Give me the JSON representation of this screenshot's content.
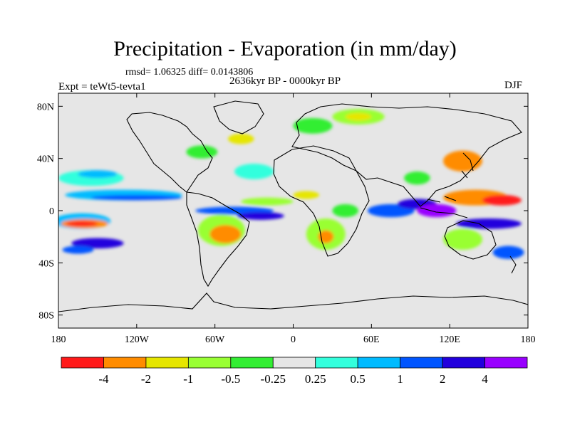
{
  "header": {
    "title": "Precipitation - Evaporation (in mm/day)",
    "stats": "rmsd= 1.06325 diff= 0.0143806",
    "period": "2636kyr BP - 0000kyr BP",
    "experiment": "Expt = teWt5-tevta1",
    "season": "DJF"
  },
  "chart_data": {
    "type": "heatmap",
    "title": "Precipitation - Evaporation (in mm/day)",
    "subtitle": "2636kyr BP - 0000kyr BP",
    "xlim": [
      -180,
      180
    ],
    "ylim": [
      -90,
      90
    ],
    "x_ticks": [
      {
        "value": -180,
        "label": "180"
      },
      {
        "value": -120,
        "label": "120W"
      },
      {
        "value": -60,
        "label": "60W"
      },
      {
        "value": 0,
        "label": "0"
      },
      {
        "value": 60,
        "label": "60E"
      },
      {
        "value": 120,
        "label": "120E"
      },
      {
        "value": 180,
        "label": "180"
      }
    ],
    "y_ticks": [
      {
        "value": 80,
        "label": "80N"
      },
      {
        "value": 40,
        "label": "40N"
      },
      {
        "value": 0,
        "label": "0"
      },
      {
        "value": -40,
        "label": "40S"
      },
      {
        "value": -80,
        "label": "80S"
      }
    ],
    "background_color": "#e6e6e6",
    "colorbar": {
      "labels": [
        "-4",
        "-2",
        "-1",
        "-0.5",
        "-0.25",
        "0.25",
        "0.5",
        "1",
        "2",
        "4"
      ],
      "colors": [
        "#ff1a1a",
        "#ff8c00",
        "#e6e600",
        "#99ff33",
        "#33ee33",
        "#e6e6e6",
        "#33ffdd",
        "#00bbff",
        "#0055ff",
        "#2200dd",
        "#9900ff"
      ]
    },
    "regions": [
      {
        "lon": -162,
        "lat": -8,
        "rx": 22,
        "ry": 6,
        "color": "#00bbff"
      },
      {
        "lon": -160,
        "lat": -10,
        "rx": 18,
        "ry": 3.5,
        "color": "#ff8c00"
      },
      {
        "lon": -162,
        "lat": -10,
        "rx": 12,
        "ry": 2,
        "color": "#ff1a1a"
      },
      {
        "lon": -130,
        "lat": 12,
        "rx": 45,
        "ry": 4,
        "color": "#00bbff"
      },
      {
        "lon": -120,
        "lat": 10,
        "rx": 35,
        "ry": 2,
        "color": "#0055ff"
      },
      {
        "lon": -155,
        "lat": 25,
        "rx": 25,
        "ry": 6,
        "color": "#33ffdd"
      },
      {
        "lon": -150,
        "lat": 28,
        "rx": 15,
        "ry": 3,
        "color": "#00bbff"
      },
      {
        "lon": -150,
        "lat": -25,
        "rx": 20,
        "ry": 4,
        "color": "#2200dd"
      },
      {
        "lon": -165,
        "lat": -30,
        "rx": 12,
        "ry": 3,
        "color": "#0055ff"
      },
      {
        "lon": -55,
        "lat": -15,
        "rx": 18,
        "ry": 12,
        "color": "#99ff33"
      },
      {
        "lon": -52,
        "lat": -18,
        "rx": 12,
        "ry": 7,
        "color": "#ff8c00"
      },
      {
        "lon": -45,
        "lat": 0,
        "rx": 30,
        "ry": 3,
        "color": "#0055ff"
      },
      {
        "lon": -25,
        "lat": -4,
        "rx": 18,
        "ry": 3,
        "color": "#2200dd"
      },
      {
        "lon": -20,
        "lat": 7,
        "rx": 20,
        "ry": 3,
        "color": "#99ff33"
      },
      {
        "lon": -30,
        "lat": 30,
        "rx": 15,
        "ry": 6,
        "color": "#33ffdd"
      },
      {
        "lon": -70,
        "lat": 45,
        "rx": 12,
        "ry": 5,
        "color": "#33ee33"
      },
      {
        "lon": -40,
        "lat": 55,
        "rx": 10,
        "ry": 4,
        "color": "#e6e600"
      },
      {
        "lon": 15,
        "lat": 65,
        "rx": 15,
        "ry": 6,
        "color": "#33ee33"
      },
      {
        "lon": 50,
        "lat": 72,
        "rx": 20,
        "ry": 6,
        "color": "#99ff33"
      },
      {
        "lon": 50,
        "lat": 72,
        "rx": 10,
        "ry": 3,
        "color": "#e6e600"
      },
      {
        "lon": 10,
        "lat": 12,
        "rx": 10,
        "ry": 3,
        "color": "#e6e600"
      },
      {
        "lon": 25,
        "lat": -18,
        "rx": 15,
        "ry": 12,
        "color": "#99ff33"
      },
      {
        "lon": 25,
        "lat": -20,
        "rx": 6,
        "ry": 5,
        "color": "#ff8c00"
      },
      {
        "lon": 40,
        "lat": 0,
        "rx": 10,
        "ry": 5,
        "color": "#33ee33"
      },
      {
        "lon": 75,
        "lat": 0,
        "rx": 18,
        "ry": 5,
        "color": "#0055ff"
      },
      {
        "lon": 95,
        "lat": 5,
        "rx": 15,
        "ry": 4,
        "color": "#2200dd"
      },
      {
        "lon": 110,
        "lat": 0,
        "rx": 15,
        "ry": 5,
        "color": "#9900ff"
      },
      {
        "lon": 140,
        "lat": 10,
        "rx": 25,
        "ry": 6,
        "color": "#ff8c00"
      },
      {
        "lon": 160,
        "lat": 8,
        "rx": 15,
        "ry": 4,
        "color": "#ff1a1a"
      },
      {
        "lon": 130,
        "lat": 38,
        "rx": 15,
        "ry": 8,
        "color": "#ff8c00"
      },
      {
        "lon": 150,
        "lat": -10,
        "rx": 25,
        "ry": 4,
        "color": "#2200dd"
      },
      {
        "lon": 130,
        "lat": -22,
        "rx": 15,
        "ry": 8,
        "color": "#99ff33"
      },
      {
        "lon": 165,
        "lat": -32,
        "rx": 12,
        "ry": 5,
        "color": "#0055ff"
      },
      {
        "lon": 95,
        "lat": 25,
        "rx": 10,
        "ry": 5,
        "color": "#33ee33"
      }
    ]
  }
}
